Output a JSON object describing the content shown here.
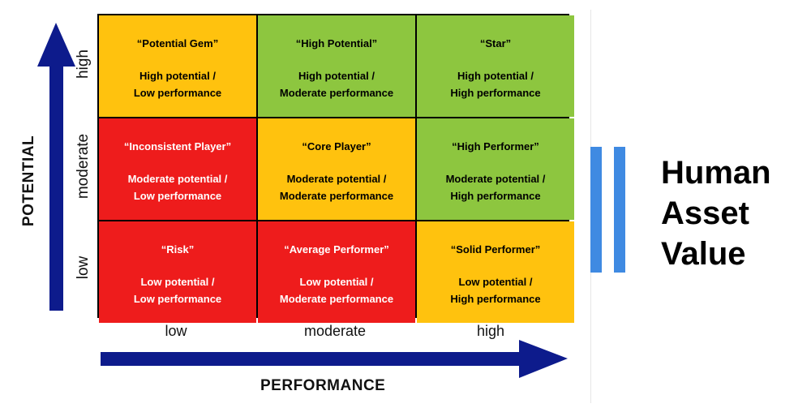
{
  "matrix": {
    "rows": [
      {
        "label": "high",
        "cells": [
          {
            "title": "“Potential Gem”",
            "desc": "High potential /\nLow performance",
            "color": "#ffc20e"
          },
          {
            "title": "“High Potential”",
            "desc": "High potential /\nModerate performance",
            "color": "#8dc63f"
          },
          {
            "title": "“Star”",
            "desc": "High potential /\nHigh performance",
            "color": "#8dc63f"
          }
        ]
      },
      {
        "label": "moderate",
        "cells": [
          {
            "title": "“Inconsistent Player”",
            "desc": "Moderate potential /\nLow performance",
            "color": "#ee1c1c"
          },
          {
            "title": "“Core Player”",
            "desc": "Moderate potential /\nModerate performance",
            "color": "#ffc20e"
          },
          {
            "title": "“High Performer”",
            "desc": "Moderate potential /\nHigh performance",
            "color": "#8dc63f"
          }
        ]
      },
      {
        "label": "low",
        "cells": [
          {
            "title": "“Risk”",
            "desc": "Low potential /\nLow performance",
            "color": "#ee1c1c"
          },
          {
            "title": "“Average Performer”",
            "desc": "Low potential /\nModerate performance",
            "color": "#ee1c1c"
          },
          {
            "title": "“Solid Performer”",
            "desc": "Low potential /\nHigh performance",
            "color": "#ffc20e"
          }
        ]
      }
    ],
    "columns": [
      "low",
      "moderate",
      "high"
    ],
    "y_axis_title": "POTENTIAL",
    "x_axis_title": "PERFORMANCE",
    "arrow_color": "#0d1b8c"
  },
  "side": {
    "title_lines": [
      "Human",
      "Asset",
      "Value"
    ],
    "bar_color": "#3f8ae2"
  }
}
